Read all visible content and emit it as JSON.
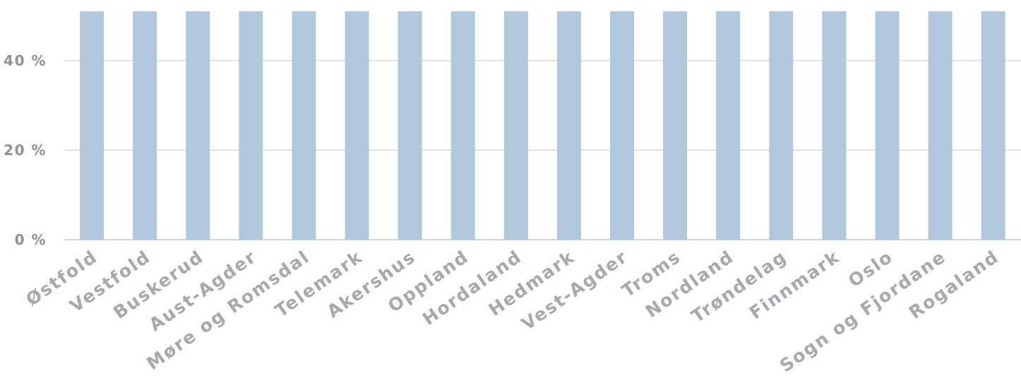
{
  "chart_data": {
    "type": "bar",
    "categories": [
      "Østfold",
      "Vestfold",
      "Buskerud",
      "Aust-Agder",
      "Møre og Romsdal",
      "Telemark",
      "Akershus",
      "Oppland",
      "Hordaland",
      "Hedmark",
      "Vest-Agder",
      "Troms",
      "Nordland",
      "Trøndelag",
      "Finnmark",
      "Oslo",
      "Sogn og Fjordane",
      "Rogaland"
    ],
    "values": [
      51,
      51,
      51,
      51,
      51,
      51,
      51,
      51,
      51,
      51,
      51,
      51,
      51,
      51,
      51,
      51,
      51,
      51
    ],
    "y_ticks": [
      {
        "value": 0,
        "label": "0 %"
      },
      {
        "value": 20,
        "label": "20 %"
      },
      {
        "value": 40,
        "label": "40 %"
      }
    ],
    "ylim": [
      0,
      51
    ],
    "ylabel": "",
    "xlabel": "",
    "grid": true,
    "colors": {
      "bar": "#b0c7dc",
      "grid": "#e3e3e3",
      "axis": "#d2d5db",
      "tick_text": "#8f9196",
      "category_text": "#a7a9ad"
    }
  }
}
